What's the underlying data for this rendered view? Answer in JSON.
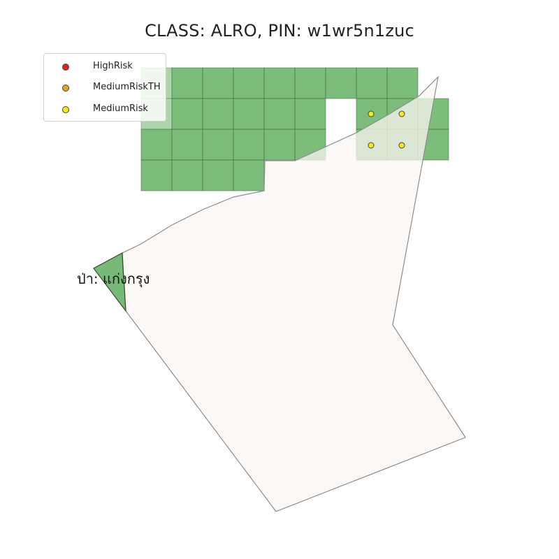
{
  "title": "CLASS: ALRO, PIN: w1wr5n1zuc",
  "legend": {
    "items": [
      {
        "label": "HighRisk",
        "color": "#e0201b",
        "icon": "red-dot-icon"
      },
      {
        "label": "MediumRiskTH",
        "color": "#e8a01a",
        "icon": "orange-dot-icon"
      },
      {
        "label": "MediumRisk",
        "color": "#f5ea14",
        "icon": "yellow-dot-icon"
      }
    ]
  },
  "forest_area": {
    "label": "ป่า: แก่งกรุง",
    "color": "#4aa34a"
  },
  "parcel": {
    "fill": "#fbf6f1",
    "stroke": "#8c8c8c"
  },
  "risk_points": {
    "category": "MediumRisk",
    "count": 4
  }
}
